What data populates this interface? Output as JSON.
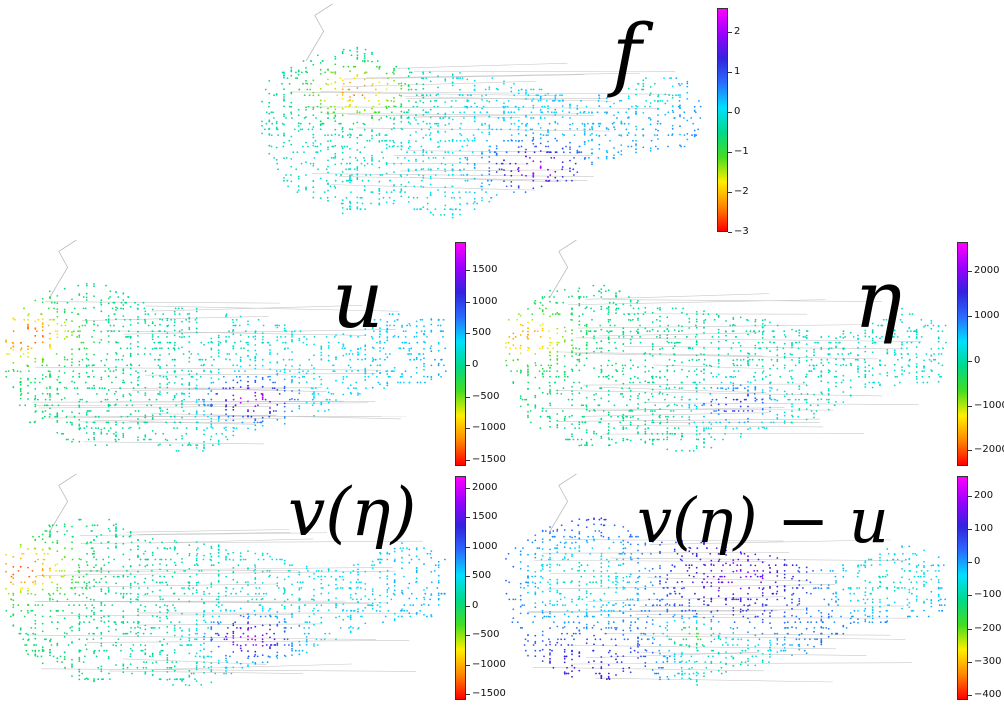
{
  "colors": {
    "colormap": [
      "#ff0000",
      "#ff8800",
      "#ffee00",
      "#44dd22",
      "#00d98a",
      "#00e0ff",
      "#2a6cff",
      "#3322dd",
      "#9a00ff",
      "#ff00ff"
    ]
  },
  "chart_data": [
    {
      "type": "heatmap",
      "title": "f",
      "colorbar": {
        "range": [
          -3.0,
          2.6
        ],
        "ticks": [
          "2",
          "1",
          "0",
          "−1",
          "−2",
          "−3"
        ],
        "tick_values": [
          2,
          1,
          0,
          -1,
          -2,
          -3
        ]
      }
    },
    {
      "type": "heatmap",
      "title": "u",
      "colorbar": {
        "range": [
          -1600,
          1950
        ],
        "ticks": [
          "1500",
          "1000",
          "500",
          "0",
          "−500",
          "−1000",
          "−1500"
        ],
        "tick_values": [
          1500,
          1000,
          500,
          0,
          -500,
          -1000,
          -1500
        ]
      }
    },
    {
      "type": "heatmap",
      "title": "η",
      "colorbar": {
        "range": [
          -2350,
          2650
        ],
        "ticks": [
          "2000",
          "1000",
          "0",
          "−1000",
          "−2000"
        ],
        "tick_values": [
          2000,
          1000,
          0,
          -1000,
          -2000
        ]
      }
    },
    {
      "type": "heatmap",
      "title": "v(η)",
      "colorbar": {
        "range": [
          -1600,
          2200
        ],
        "ticks": [
          "2000",
          "1500",
          "1000",
          "500",
          "0",
          "−500",
          "−1000",
          "−1500"
        ],
        "tick_values": [
          2000,
          1500,
          1000,
          500,
          0,
          -500,
          -1000,
          -1500
        ]
      }
    },
    {
      "type": "heatmap",
      "title": "v(η) − u",
      "colorbar": {
        "range": [
          -415,
          260
        ],
        "ticks": [
          "200",
          "100",
          "0",
          "−100",
          "−200",
          "−300",
          "−400"
        ],
        "tick_values": [
          200,
          100,
          0,
          -100,
          -200,
          -300,
          -400
        ]
      }
    }
  ]
}
